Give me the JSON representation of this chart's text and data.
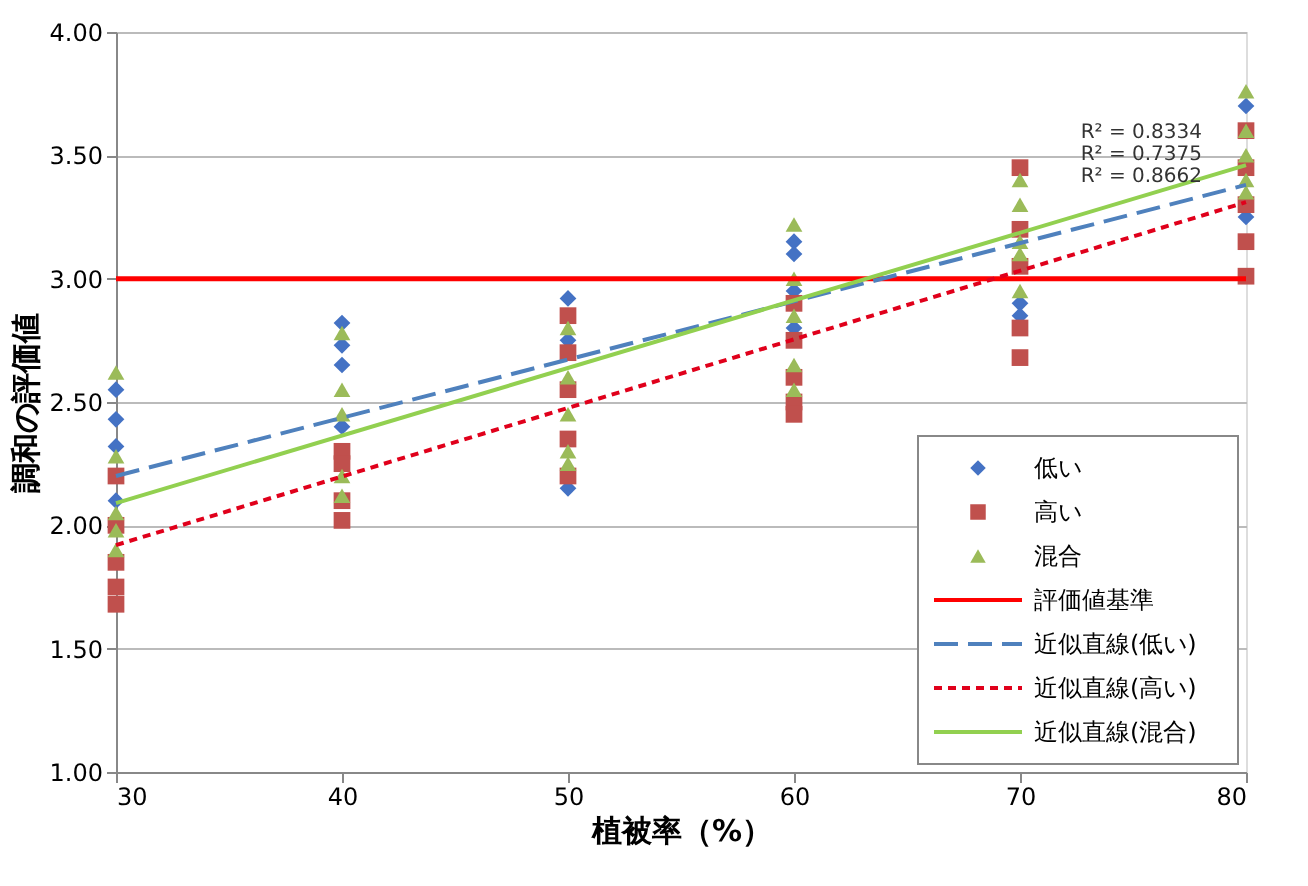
{
  "chart_data": {
    "type": "scatter",
    "xlabel": "植被率（%）",
    "ylabel": "調和の評価値",
    "xlim": [
      30,
      80
    ],
    "xticks": [
      30,
      40,
      50,
      60,
      70,
      80
    ],
    "ylim": [
      1.0,
      4.0
    ],
    "yticks": [
      {
        "value": 1.0,
        "label": "1.00"
      },
      {
        "value": 1.5,
        "label": "1.50"
      },
      {
        "value": 2.0,
        "label": "2.00"
      },
      {
        "value": 2.5,
        "label": "2.50"
      },
      {
        "value": 3.0,
        "label": "3.00"
      },
      {
        "value": 3.5,
        "label": "3.50"
      },
      {
        "value": 4.0,
        "label": "4.00"
      }
    ],
    "grid": "y",
    "legend": "bottom right",
    "series": [
      {
        "name": "低い",
        "marker": "diamond",
        "color": "#4472c4",
        "x": [
          30,
          30,
          30,
          30,
          40,
          40,
          40,
          40,
          50,
          50,
          50,
          60,
          60,
          60,
          60,
          70,
          70,
          80,
          80
        ],
        "values": [
          2.55,
          2.43,
          2.32,
          2.1,
          2.82,
          2.73,
          2.65,
          2.4,
          2.92,
          2.75,
          2.15,
          3.15,
          3.1,
          2.95,
          2.8,
          2.9,
          2.85,
          3.7,
          3.25
        ]
      },
      {
        "name": "高い",
        "marker": "square",
        "color": "#c0504d",
        "x": [
          30,
          30,
          30,
          30,
          30,
          40,
          40,
          40,
          40,
          50,
          50,
          50,
          50,
          50,
          60,
          60,
          60,
          60,
          60,
          70,
          70,
          70,
          70,
          70,
          80,
          80,
          80,
          80,
          80
        ],
        "values": [
          2.2,
          2.0,
          1.85,
          1.75,
          1.68,
          2.3,
          2.25,
          2.1,
          2.02,
          2.85,
          2.7,
          2.55,
          2.35,
          2.2,
          2.9,
          2.75,
          2.6,
          2.5,
          2.45,
          3.45,
          3.2,
          3.05,
          2.8,
          2.68,
          3.6,
          3.45,
          3.3,
          3.15,
          3.01
        ]
      },
      {
        "name": "混合",
        "marker": "triangle",
        "color": "#9bbb59",
        "x": [
          30,
          30,
          30,
          30,
          30,
          40,
          40,
          40,
          40,
          40,
          50,
          50,
          50,
          50,
          50,
          60,
          60,
          60,
          60,
          60,
          70,
          70,
          70,
          70,
          70,
          80,
          80,
          80,
          80,
          80
        ],
        "values": [
          2.62,
          2.28,
          2.05,
          1.98,
          1.9,
          2.78,
          2.55,
          2.45,
          2.2,
          2.12,
          2.8,
          2.6,
          2.45,
          2.3,
          2.25,
          3.22,
          3.0,
          2.85,
          2.65,
          2.55,
          3.4,
          3.3,
          3.15,
          3.1,
          2.95,
          3.76,
          3.6,
          3.5,
          3.4,
          3.35
        ]
      },
      {
        "name": "近似直線(低い)",
        "type": "line",
        "line_style": "dashed",
        "color": "#4f81bd",
        "x": [
          30,
          80
        ],
        "values": [
          2.2,
          3.38
        ]
      },
      {
        "name": "近似直線(高い)",
        "type": "line",
        "line_style": "dotted",
        "color": "#e0001b",
        "x": [
          30,
          80
        ],
        "values": [
          1.92,
          3.31
        ]
      },
      {
        "name": "近似直線(混合)",
        "type": "line",
        "line_style": "solid",
        "color": "#92d050",
        "x": [
          30,
          80
        ],
        "values": [
          2.09,
          3.46
        ]
      }
    ],
    "ref_lines": [
      {
        "axis": "y",
        "value": 3.0,
        "label": "評価値基準",
        "color": "#ff0000"
      }
    ],
    "annotations": [
      "R² = 0.8334",
      "R² = 0.7375",
      "R² = 0.8662"
    ]
  }
}
